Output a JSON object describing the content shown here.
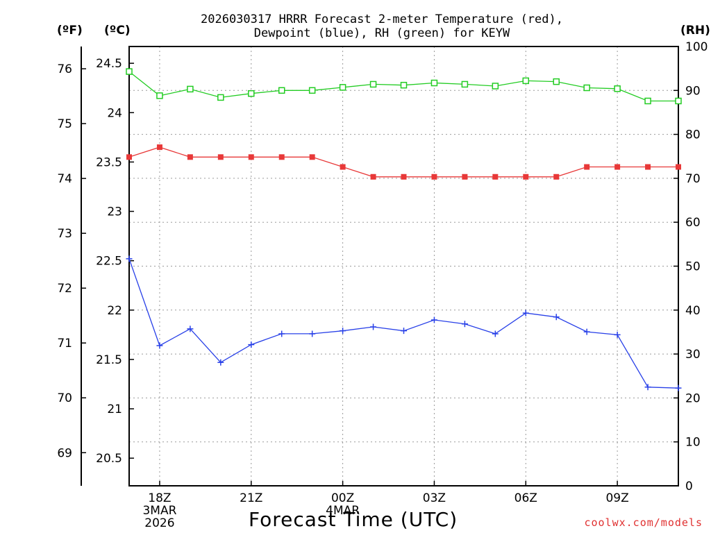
{
  "title": {
    "line1": "2026030317 HRRR Forecast 2-meter Temperature (red),",
    "line2": "Dewpoint (blue), RH (green) for KEYW"
  },
  "units": {
    "f": "(ºF)",
    "c": "(ºC)",
    "rh": "(RH)"
  },
  "credit": "coolwx.com/models",
  "chart_data": {
    "type": "line",
    "title": "2026030317 HRRR Forecast 2-meter Temperature (red), Dewpoint (blue), RH (green) for KEYW",
    "xlabel": "Forecast Time (UTC)",
    "x_range_hours": [
      -1,
      17
    ],
    "x_ticks": [
      {
        "hour": 0,
        "lines": [
          "18Z",
          "3MAR",
          "2026"
        ]
      },
      {
        "hour": 3,
        "lines": [
          "21Z"
        ]
      },
      {
        "hour": 6,
        "lines": [
          "00Z",
          "4MAR"
        ]
      },
      {
        "hour": 9,
        "lines": [
          "03Z"
        ]
      },
      {
        "hour": 12,
        "lines": [
          "06Z"
        ]
      },
      {
        "hour": 15,
        "lines": [
          "09Z"
        ]
      }
    ],
    "celsius_axis": {
      "label": "(ºC)",
      "ylim": [
        20.22,
        24.67
      ],
      "ticks": [
        "20.5",
        "21",
        "21.5",
        "22",
        "22.5",
        "23",
        "23.5",
        "24",
        "24.5"
      ]
    },
    "fahrenheit_axis": {
      "label": "(ºF)",
      "ticks": [
        "69",
        "70",
        "71",
        "72",
        "73",
        "74",
        "75",
        "76"
      ]
    },
    "rh_axis": {
      "label": "(RH)",
      "ylim": [
        0,
        100
      ],
      "ticks": [
        "0",
        "10",
        "20",
        "30",
        "40",
        "50",
        "60",
        "70",
        "80",
        "90",
        "100"
      ]
    },
    "series": [
      {
        "name": "2-meter Temperature (°C)",
        "color": "#e83838",
        "marker": "filled-square",
        "axis": "celsius",
        "x": [
          -1,
          0,
          1,
          2,
          3,
          4,
          5,
          6,
          7,
          8,
          9,
          10,
          11,
          12,
          13,
          14,
          15,
          16,
          17
        ],
        "values": [
          23.55,
          23.65,
          23.55,
          23.55,
          23.55,
          23.55,
          23.55,
          23.45,
          23.35,
          23.35,
          23.35,
          23.35,
          23.35,
          23.35,
          23.35,
          23.45,
          23.45,
          23.45,
          23.45
        ]
      },
      {
        "name": "Dewpoint (°C)",
        "color": "#2840e8",
        "marker": "plus",
        "axis": "celsius",
        "x": [
          -1,
          0,
          1,
          2,
          3,
          4,
          5,
          6,
          7,
          8,
          9,
          10,
          11,
          12,
          13,
          14,
          15,
          16,
          17
        ],
        "values": [
          22.52,
          21.64,
          21.81,
          21.47,
          21.65,
          21.76,
          21.76,
          21.79,
          21.83,
          21.79,
          21.9,
          21.86,
          21.76,
          21.97,
          21.93,
          21.78,
          21.75,
          21.22,
          21.21
        ]
      },
      {
        "name": "RH (%)",
        "color": "#22cc22",
        "marker": "open-square",
        "axis": "rh",
        "x": [
          -1,
          0,
          1,
          2,
          3,
          4,
          5,
          6,
          7,
          8,
          9,
          10,
          11,
          12,
          13,
          14,
          15,
          16,
          17
        ],
        "values": [
          94.3,
          88.8,
          90.3,
          88.4,
          89.3,
          90.0,
          90.0,
          90.7,
          91.4,
          91.2,
          91.7,
          91.4,
          91.0,
          92.2,
          92.0,
          90.6,
          90.4,
          87.6,
          87.6
        ]
      }
    ],
    "grid": true
  }
}
